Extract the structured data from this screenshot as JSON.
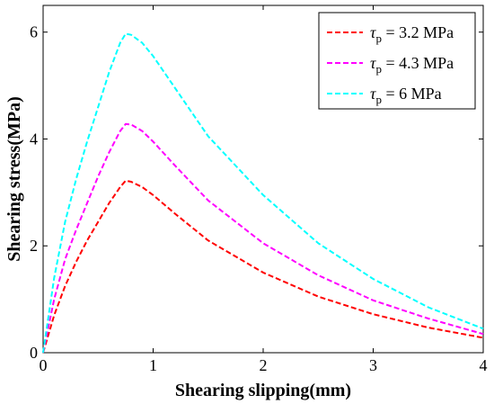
{
  "chart_data": {
    "type": "line",
    "xlabel": "Shearing slipping(mm)",
    "ylabel": "Shearing stress(MPa)",
    "xlim": [
      0,
      4
    ],
    "ylim": [
      0,
      6.5
    ],
    "x_ticks": [
      "0",
      "1",
      "2",
      "3",
      "4"
    ],
    "y_ticks": [
      "0",
      "2",
      "4",
      "6"
    ],
    "x_tick_values": [
      0,
      1,
      2,
      3,
      4
    ],
    "y_tick_values": [
      0,
      2,
      4,
      6
    ],
    "grid": false,
    "legend_position": "top-right",
    "series": [
      {
        "name": "τp = 3.2 MPa",
        "legend": {
          "symbol": "τ",
          "sub": "p",
          "value": " = 3.2 MPa"
        },
        "color": "#ff0000",
        "x": [
          0,
          0.1,
          0.2,
          0.3,
          0.4,
          0.5,
          0.6,
          0.7,
          0.75,
          0.8,
          0.9,
          1.0,
          1.2,
          1.5,
          2.0,
          2.5,
          3.0,
          3.5,
          4.0
        ],
        "y": [
          0,
          0.7,
          1.25,
          1.7,
          2.1,
          2.45,
          2.8,
          3.1,
          3.22,
          3.2,
          3.1,
          2.95,
          2.6,
          2.1,
          1.5,
          1.05,
          0.72,
          0.47,
          0.28
        ]
      },
      {
        "name": "τp = 4.3 MPa",
        "legend": {
          "symbol": "τ",
          "sub": "p",
          "value": " = 4.3 MPa"
        },
        "color": "#ff00ff",
        "x": [
          0,
          0.1,
          0.2,
          0.3,
          0.4,
          0.5,
          0.6,
          0.7,
          0.75,
          0.8,
          0.9,
          1.0,
          1.2,
          1.5,
          2.0,
          2.5,
          3.0,
          3.5,
          4.0
        ],
        "y": [
          0,
          1.0,
          1.75,
          2.3,
          2.8,
          3.3,
          3.75,
          4.15,
          4.28,
          4.27,
          4.15,
          3.95,
          3.5,
          2.85,
          2.05,
          1.45,
          0.98,
          0.64,
          0.35
        ]
      },
      {
        "name": "τp = 6 MPa",
        "legend": {
          "symbol": "τ",
          "sub": "p",
          "value": " = 6 MPa"
        },
        "color": "#00ffff",
        "x": [
          0,
          0.1,
          0.2,
          0.3,
          0.4,
          0.5,
          0.6,
          0.7,
          0.75,
          0.8,
          0.9,
          1.0,
          1.2,
          1.5,
          2.0,
          2.5,
          3.0,
          3.5,
          4.0
        ],
        "y": [
          0,
          1.4,
          2.45,
          3.25,
          3.95,
          4.6,
          5.25,
          5.8,
          5.97,
          5.95,
          5.8,
          5.55,
          4.95,
          4.05,
          2.95,
          2.05,
          1.38,
          0.85,
          0.45
        ]
      }
    ]
  }
}
